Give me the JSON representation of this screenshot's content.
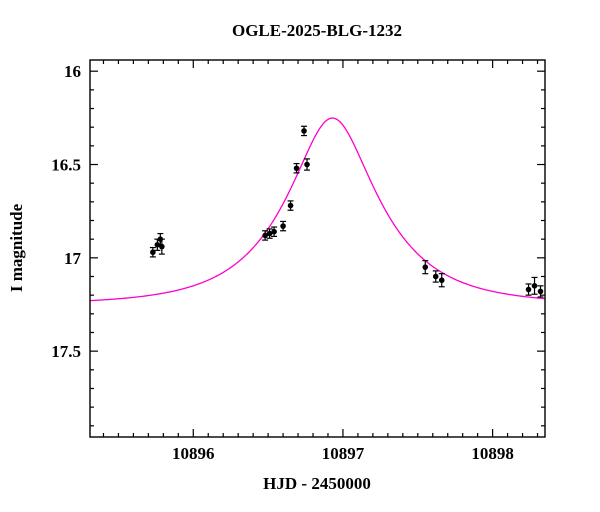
{
  "chart_data": {
    "type": "scatter",
    "title": "OGLE-2025-BLG-1232",
    "xlabel": "HJD - 2450000",
    "ylabel": "I magnitude",
    "xlim": [
      10895.31,
      10898.35
    ],
    "ylim": [
      15.94,
      17.96
    ],
    "y_axis_inverted_magnitudes": true,
    "grid": false,
    "legend": "none",
    "x_major_ticks": [
      {
        "value": 10896,
        "label": "10896"
      },
      {
        "value": 10897,
        "label": "10897"
      },
      {
        "value": 10898,
        "label": "10898"
      }
    ],
    "x_minor_step": 0.1,
    "y_major_ticks": [
      {
        "value": 16,
        "label": "16"
      },
      {
        "value": 16.5,
        "label": "16.5"
      },
      {
        "value": 17,
        "label": "17"
      },
      {
        "value": 17.5,
        "label": "17.5"
      }
    ],
    "y_minor_step": 0.1,
    "point_color": "#000000",
    "model_color": "#ff00cc",
    "points": [
      {
        "x": 10895.73,
        "y": 16.97,
        "err": 0.025
      },
      {
        "x": 10895.76,
        "y": 16.93,
        "err": 0.03
      },
      {
        "x": 10895.78,
        "y": 16.9,
        "err": 0.03
      },
      {
        "x": 10895.79,
        "y": 16.94,
        "err": 0.04
      },
      {
        "x": 10896.48,
        "y": 16.88,
        "err": 0.025
      },
      {
        "x": 10896.51,
        "y": 16.87,
        "err": 0.025
      },
      {
        "x": 10896.54,
        "y": 16.86,
        "err": 0.025
      },
      {
        "x": 10896.6,
        "y": 16.83,
        "err": 0.025
      },
      {
        "x": 10896.65,
        "y": 16.72,
        "err": 0.025
      },
      {
        "x": 10896.69,
        "y": 16.52,
        "err": 0.025
      },
      {
        "x": 10896.74,
        "y": 16.32,
        "err": 0.025
      },
      {
        "x": 10896.76,
        "y": 16.5,
        "err": 0.03
      },
      {
        "x": 10897.55,
        "y": 17.05,
        "err": 0.035
      },
      {
        "x": 10897.62,
        "y": 17.1,
        "err": 0.03
      },
      {
        "x": 10897.66,
        "y": 17.12,
        "err": 0.035
      },
      {
        "x": 10898.24,
        "y": 17.17,
        "err": 0.03
      },
      {
        "x": 10898.28,
        "y": 17.15,
        "err": 0.045
      },
      {
        "x": 10898.32,
        "y": 17.18,
        "err": 0.03
      }
    ],
    "model": {
      "type": "paczynski",
      "t0": 10896.93,
      "u0": 0.425,
      "tE": 0.567,
      "I0": 17.25
    }
  }
}
